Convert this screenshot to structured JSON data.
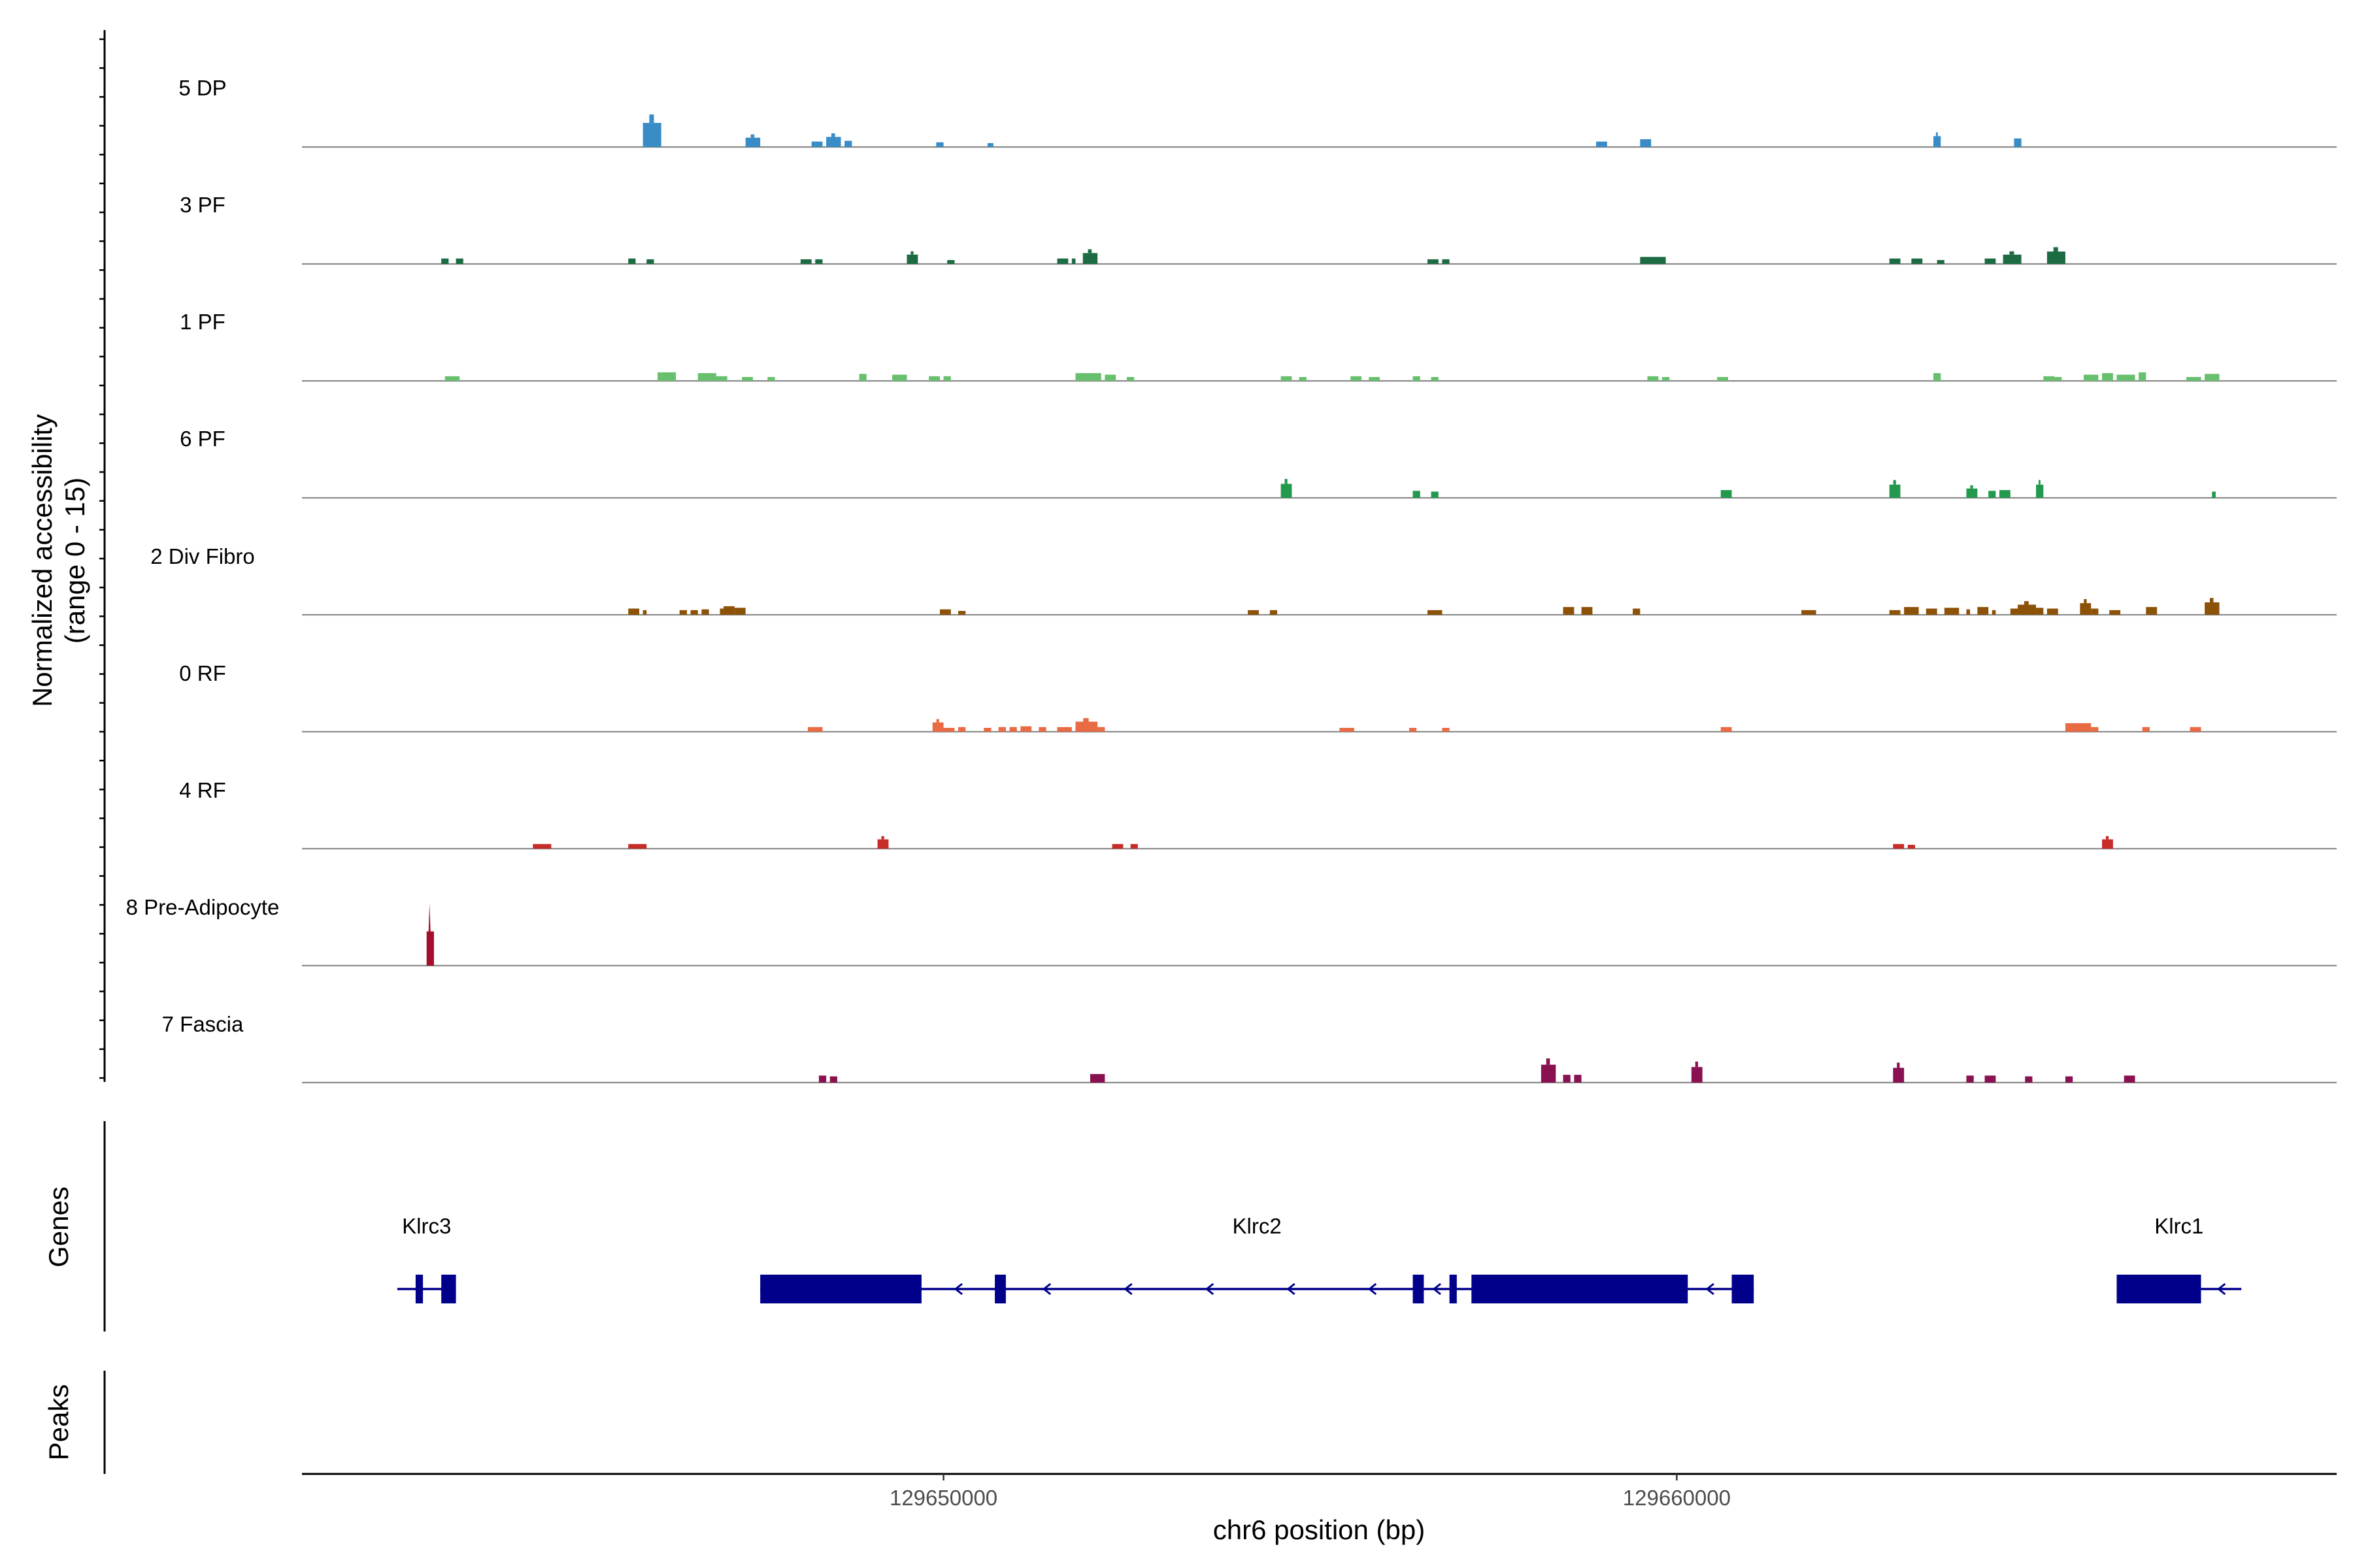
{
  "chart_data": {
    "type": "coverage-track",
    "title": "",
    "chromosome": "chr6",
    "xlabel": "chr6 position (bp)",
    "xlim": [
      129641250,
      129669000
    ],
    "x_ticks": [
      {
        "value": 129650000,
        "label": "129650000"
      },
      {
        "value": 129660000,
        "label": "129660000"
      }
    ],
    "ylabel_line1": "Normalized accessibility",
    "ylabel_line2": "(range 0 - 15)",
    "ylim": [
      0,
      15
    ],
    "panel_labels": {
      "genes": "Genes",
      "peaks": "Peaks"
    },
    "tracks": [
      {
        "name": "5 DP",
        "color": "#3a8cc7",
        "peaks": [
          [
            129645900,
            129646150,
            3.1
          ],
          [
            129647300,
            129647500,
            1.2
          ],
          [
            129648200,
            129648350,
            0.7
          ],
          [
            129648400,
            129648600,
            1.3
          ],
          [
            129648650,
            129648750,
            0.8
          ],
          [
            129649900,
            129650000,
            0.6
          ],
          [
            129650600,
            129650680,
            0.5
          ],
          [
            129658900,
            129659050,
            0.7
          ],
          [
            129659500,
            129659650,
            1.0
          ],
          [
            129663500,
            129663600,
            1.4
          ],
          [
            129664600,
            129664700,
            1.1
          ]
        ]
      },
      {
        "name": "3 PF",
        "color": "#1d6b43",
        "peaks": [
          [
            129643150,
            129643250,
            0.7
          ],
          [
            129643350,
            129643450,
            0.7
          ],
          [
            129645700,
            129645800,
            0.7
          ],
          [
            129645950,
            129646050,
            0.6
          ],
          [
            129648050,
            129648200,
            0.6
          ],
          [
            129648250,
            129648350,
            0.6
          ],
          [
            129649500,
            129649650,
            1.2
          ],
          [
            129650050,
            129650150,
            0.5
          ],
          [
            129651550,
            129651700,
            0.7
          ],
          [
            129651750,
            129651800,
            0.7
          ],
          [
            129651900,
            129652100,
            1.4
          ],
          [
            129656600,
            129656750,
            0.6
          ],
          [
            129656800,
            129656900,
            0.6
          ],
          [
            129659500,
            129659850,
            0.9
          ],
          [
            129662900,
            129663050,
            0.7
          ],
          [
            129663200,
            129663350,
            0.7
          ],
          [
            129663550,
            129663650,
            0.5
          ],
          [
            129664200,
            129664350,
            0.7
          ],
          [
            129664450,
            129664700,
            1.2
          ],
          [
            129665050,
            129665300,
            1.6
          ]
        ]
      },
      {
        "name": "1 PF",
        "color": "#68bf6e",
        "peaks": [
          [
            129643200,
            129643400,
            0.6
          ],
          [
            129646100,
            129646350,
            1.1
          ],
          [
            129646650,
            129646900,
            1.0
          ],
          [
            129646900,
            129647050,
            0.6
          ],
          [
            129647250,
            129647400,
            0.5
          ],
          [
            129647600,
            129647700,
            0.5
          ],
          [
            129648850,
            129648950,
            0.9
          ],
          [
            129649300,
            129649500,
            0.8
          ],
          [
            129649800,
            129649950,
            0.6
          ],
          [
            129650000,
            129650100,
            0.6
          ],
          [
            129651800,
            129652150,
            1.0
          ],
          [
            129652200,
            129652350,
            0.8
          ],
          [
            129652500,
            129652600,
            0.5
          ],
          [
            129654600,
            129654750,
            0.6
          ],
          [
            129654850,
            129654950,
            0.5
          ],
          [
            129655550,
            129655700,
            0.6
          ],
          [
            129655800,
            129655950,
            0.5
          ],
          [
            129656400,
            129656500,
            0.6
          ],
          [
            129656650,
            129656750,
            0.5
          ],
          [
            129659600,
            129659750,
            0.6
          ],
          [
            129659800,
            129659900,
            0.5
          ],
          [
            129660550,
            129660700,
            0.5
          ],
          [
            129663500,
            129663600,
            1.0
          ],
          [
            129665000,
            129665150,
            0.6
          ],
          [
            129665150,
            129665250,
            0.5
          ],
          [
            129665550,
            129665750,
            0.8
          ],
          [
            129665800,
            129665950,
            1.0
          ],
          [
            129666000,
            129666250,
            0.8
          ],
          [
            129666300,
            129666400,
            1.1
          ],
          [
            129666950,
            129667150,
            0.5
          ],
          [
            129667200,
            129667400,
            0.9
          ]
        ]
      },
      {
        "name": "6 PF",
        "color": "#23994e",
        "peaks": [
          [
            129654600,
            129654750,
            1.8
          ],
          [
            129656400,
            129656500,
            0.9
          ],
          [
            129656650,
            129656750,
            0.8
          ],
          [
            129660600,
            129660750,
            1.0
          ],
          [
            129662900,
            129663050,
            1.7
          ],
          [
            129663950,
            129664100,
            1.2
          ],
          [
            129664250,
            129664350,
            0.9
          ],
          [
            129664400,
            129664550,
            1.0
          ],
          [
            129664900,
            129665000,
            1.7
          ],
          [
            129667300,
            129667350,
            0.8
          ]
        ]
      },
      {
        "name": "2 Div Fibro",
        "color": "#8c5208",
        "peaks": [
          [
            129645700,
            129645850,
            0.8
          ],
          [
            129645900,
            129645950,
            0.6
          ],
          [
            129646400,
            129646500,
            0.6
          ],
          [
            129646550,
            129646650,
            0.6
          ],
          [
            129646700,
            129646800,
            0.7
          ],
          [
            129646950,
            129647000,
            0.8
          ],
          [
            129647000,
            129647150,
            1.1
          ],
          [
            129647150,
            129647300,
            0.9
          ],
          [
            129649950,
            129650100,
            0.7
          ],
          [
            129650200,
            129650300,
            0.5
          ],
          [
            129654150,
            129654300,
            0.6
          ],
          [
            129654450,
            129654550,
            0.6
          ],
          [
            129656600,
            129656800,
            0.6
          ],
          [
            129658450,
            129658600,
            1.0
          ],
          [
            129658700,
            129658850,
            1.0
          ],
          [
            129659400,
            129659500,
            0.8
          ],
          [
            129661700,
            129661900,
            0.6
          ],
          [
            129662900,
            129663050,
            0.6
          ],
          [
            129663100,
            129663300,
            1.0
          ],
          [
            129663400,
            129663550,
            0.8
          ],
          [
            129663650,
            129663850,
            0.9
          ],
          [
            129663950,
            129664000,
            0.7
          ],
          [
            129664100,
            129664250,
            1.0
          ],
          [
            129664300,
            129664350,
            0.6
          ],
          [
            129664550,
            129664650,
            0.8
          ],
          [
            129664650,
            129664900,
            1.3
          ],
          [
            129664900,
            129665000,
            0.9
          ],
          [
            129665050,
            129665200,
            0.8
          ],
          [
            129665500,
            129665650,
            1.5
          ],
          [
            129665650,
            129665750,
            0.8
          ],
          [
            129665900,
            129666050,
            0.6
          ],
          [
            129666400,
            129666550,
            1.0
          ],
          [
            129667200,
            129667400,
            1.6
          ]
        ]
      },
      {
        "name": "0 RF",
        "color": "#e86b44",
        "peaks": [
          [
            129648150,
            129648350,
            0.6
          ],
          [
            129649850,
            129650000,
            1.2
          ],
          [
            129650000,
            129650150,
            0.5
          ],
          [
            129650200,
            129650300,
            0.6
          ],
          [
            129650550,
            129650650,
            0.5
          ],
          [
            129650750,
            129650850,
            0.6
          ],
          [
            129650900,
            129651000,
            0.6
          ],
          [
            129651050,
            129651200,
            0.7
          ],
          [
            129651300,
            129651400,
            0.6
          ],
          [
            129651550,
            129651750,
            0.6
          ],
          [
            129651800,
            129652100,
            1.3
          ],
          [
            129652100,
            129652200,
            0.6
          ],
          [
            129655400,
            129655600,
            0.5
          ],
          [
            129656350,
            129656450,
            0.5
          ],
          [
            129656800,
            129656900,
            0.5
          ],
          [
            129660600,
            129660750,
            0.6
          ],
          [
            129665300,
            129665650,
            1.1
          ],
          [
            129665650,
            129665750,
            0.6
          ],
          [
            129666350,
            129666450,
            0.6
          ],
          [
            129667000,
            129667150,
            0.6
          ]
        ]
      },
      {
        "name": "4 RF",
        "color": "#c62d28",
        "peaks": [
          [
            129644400,
            129644650,
            0.6
          ],
          [
            129645700,
            129645850,
            0.6
          ],
          [
            129645850,
            129645950,
            0.6
          ],
          [
            129649100,
            129649250,
            1.2
          ],
          [
            129652300,
            129652450,
            0.6
          ],
          [
            129652550,
            129652650,
            0.6
          ],
          [
            129662950,
            129663100,
            0.6
          ],
          [
            129663150,
            129663250,
            0.5
          ],
          [
            129665800,
            129665950,
            1.2
          ]
        ]
      },
      {
        "name": "8 Pre-Adipocyte",
        "color": "#a50f2e",
        "peaks": [
          [
            129642950,
            129643050,
            8.0
          ]
        ]
      },
      {
        "name": "7 Fascia",
        "color": "#8a1151",
        "peaks": [
          [
            129648300,
            129648400,
            0.9
          ],
          [
            129648450,
            129648550,
            0.8
          ],
          [
            129652000,
            129652200,
            1.1
          ],
          [
            129658150,
            129658350,
            2.3
          ],
          [
            129658450,
            129658550,
            1.0
          ],
          [
            129658600,
            129658700,
            1.0
          ],
          [
            129660200,
            129660350,
            2.0
          ],
          [
            129662950,
            129663100,
            1.9
          ],
          [
            129663950,
            129664050,
            0.9
          ],
          [
            129664200,
            129664350,
            0.9
          ],
          [
            129664750,
            129664850,
            0.8
          ],
          [
            129665300,
            129665400,
            0.8
          ],
          [
            129666100,
            129666250,
            0.9
          ]
        ]
      }
    ],
    "genes": [
      {
        "name": "Klrc3",
        "start": 129642550,
        "end": 129643350,
        "strand": "-",
        "exons": [
          [
            129642800,
            129642900
          ],
          [
            129643150,
            129643350
          ]
        ]
      },
      {
        "name": "Klrc2",
        "start": 129647500,
        "end": 129661050,
        "strand": "-",
        "exons": [
          [
            129647500,
            129649700
          ],
          [
            129650700,
            129650850
          ],
          [
            129656400,
            129656550
          ],
          [
            129656900,
            129657000
          ],
          [
            129657200,
            129660150
          ],
          [
            129660750,
            129661050
          ]
        ]
      },
      {
        "name": "Klrc1",
        "start": 129666000,
        "end": 129667700,
        "strand": "-",
        "exons": [
          [
            129666000,
            129667150
          ]
        ]
      }
    ]
  }
}
